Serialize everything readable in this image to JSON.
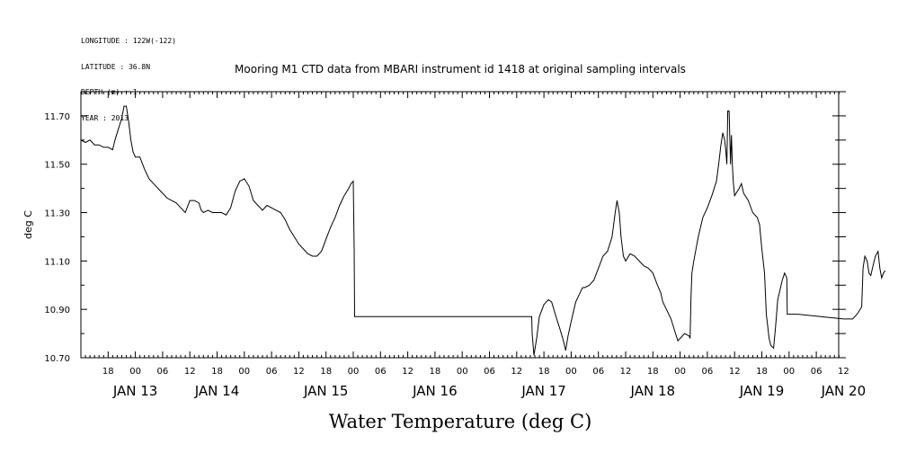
{
  "meta_lines": [
    "LONGITUDE : 122W(-122)",
    "LATITUDE : 36.8N",
    "DEPTH (m) : 1",
    "YEAR : 2013"
  ],
  "chart_data": {
    "type": "line",
    "title": "Mooring M1 CTD data from MBARI instrument id 1418 at original sampling intervals",
    "ylabel": "deg C",
    "xlabel": "Water Temperature (deg C)",
    "ylim": [
      10.7,
      11.8
    ],
    "xlim_hours": [
      12,
      180
    ],
    "yticks": [
      10.7,
      10.9,
      11.1,
      11.3,
      11.5,
      11.7
    ],
    "ytick_labels": [
      "10.70",
      "10.90",
      "11.10",
      "11.30",
      "11.50",
      "11.70"
    ],
    "hour_ticks": [
      18,
      0,
      6,
      12,
      18,
      0,
      6,
      12,
      18,
      0,
      6,
      12,
      18,
      0,
      6,
      12,
      18,
      0,
      6,
      12,
      18,
      0,
      6,
      12,
      18,
      0,
      6,
      12
    ],
    "day_labels": [
      "JAN 13",
      "JAN 14",
      "JAN 15",
      "JAN 16",
      "JAN 17",
      "JAN 18",
      "JAN 19",
      "JAN 20"
    ],
    "day_label_hours": [
      24,
      42,
      66,
      90,
      114,
      138,
      162,
      180
    ],
    "x_units": "hours since JAN 13 00:00",
    "series": [
      {
        "points": [
          [
            12,
            11.6
          ],
          [
            13,
            11.59
          ],
          [
            14,
            11.6
          ],
          [
            15,
            11.58
          ],
          [
            16,
            11.58
          ],
          [
            17,
            11.57
          ],
          [
            18,
            11.57
          ],
          [
            19,
            11.56
          ],
          [
            19.5,
            11.6
          ],
          [
            20,
            11.63
          ],
          [
            21,
            11.69
          ],
          [
            21.5,
            11.74
          ],
          [
            22,
            11.74
          ],
          [
            22.5,
            11.68
          ],
          [
            23,
            11.6
          ],
          [
            23.5,
            11.55
          ],
          [
            24,
            11.53
          ],
          [
            25,
            11.53
          ],
          [
            26,
            11.48
          ],
          [
            27,
            11.44
          ],
          [
            28,
            11.42
          ],
          [
            29,
            11.4
          ],
          [
            30,
            11.38
          ],
          [
            31,
            11.36
          ],
          [
            32,
            11.35
          ],
          [
            33,
            11.34
          ],
          [
            34,
            11.32
          ],
          [
            35,
            11.3
          ],
          [
            36,
            11.35
          ],
          [
            37,
            11.35
          ],
          [
            38,
            11.34
          ],
          [
            38.5,
            11.31
          ],
          [
            39,
            11.3
          ],
          [
            40,
            11.31
          ],
          [
            41,
            11.3
          ],
          [
            42,
            11.3
          ],
          [
            43,
            11.3
          ],
          [
            44,
            11.29
          ],
          [
            45,
            11.32
          ],
          [
            46,
            11.39
          ],
          [
            47,
            11.43
          ],
          [
            48,
            11.44
          ],
          [
            49,
            11.41
          ],
          [
            50,
            11.35
          ],
          [
            51,
            11.33
          ],
          [
            52,
            11.31
          ],
          [
            53,
            11.33
          ],
          [
            54,
            11.32
          ],
          [
            55,
            11.31
          ],
          [
            56,
            11.3
          ],
          [
            57,
            11.27
          ],
          [
            58,
            11.23
          ],
          [
            59,
            11.2
          ],
          [
            60,
            11.17
          ],
          [
            61,
            11.15
          ],
          [
            62,
            11.13
          ],
          [
            63,
            11.12
          ],
          [
            64,
            11.12
          ],
          [
            65,
            11.14
          ],
          [
            66,
            11.19
          ],
          [
            67,
            11.24
          ],
          [
            68,
            11.28
          ],
          [
            69,
            11.33
          ],
          [
            70,
            11.37
          ],
          [
            71,
            11.4
          ],
          [
            71.5,
            11.42
          ],
          [
            72,
            11.43
          ],
          [
            72.2,
            11.15
          ],
          [
            72.3,
            10.87
          ],
          [
            80,
            10.87
          ],
          [
            90,
            10.87
          ],
          [
            100,
            10.87
          ],
          [
            110,
            10.87
          ],
          [
            111.3,
            10.87
          ],
          [
            111.4,
            10.8
          ],
          [
            111.8,
            10.71
          ],
          [
            112.4,
            10.78
          ],
          [
            113,
            10.87
          ],
          [
            114,
            10.92
          ],
          [
            115,
            10.94
          ],
          [
            115.7,
            10.93
          ],
          [
            116.5,
            10.88
          ],
          [
            117.5,
            10.82
          ],
          [
            118.3,
            10.77
          ],
          [
            118.8,
            10.73
          ],
          [
            119.3,
            10.79
          ],
          [
            120,
            10.85
          ],
          [
            121,
            10.93
          ],
          [
            122,
            10.97
          ],
          [
            122.5,
            10.99
          ],
          [
            123,
            10.99
          ],
          [
            124,
            11
          ],
          [
            125,
            11.02
          ],
          [
            126,
            11.07
          ],
          [
            127,
            11.12
          ],
          [
            128,
            11.14
          ],
          [
            129,
            11.2
          ],
          [
            129.7,
            11.3
          ],
          [
            130.1,
            11.35
          ],
          [
            130.6,
            11.3
          ],
          [
            131,
            11.2
          ],
          [
            131.5,
            11.12
          ],
          [
            132,
            11.1
          ],
          [
            133,
            11.13
          ],
          [
            134,
            11.12
          ],
          [
            135,
            11.1
          ],
          [
            136,
            11.08
          ],
          [
            137,
            11.07
          ],
          [
            138,
            11.05
          ],
          [
            139,
            11
          ],
          [
            139.7,
            10.97
          ],
          [
            140.2,
            10.93
          ],
          [
            141,
            10.9
          ],
          [
            142,
            10.86
          ],
          [
            143,
            10.8
          ],
          [
            143.5,
            10.77
          ],
          [
            144,
            10.78
          ],
          [
            145,
            10.8
          ],
          [
            146,
            10.79
          ],
          [
            146.2,
            10.78
          ],
          [
            146.4,
            10.95
          ],
          [
            146.6,
            11.05
          ],
          [
            147,
            11.1
          ],
          [
            148,
            11.2
          ],
          [
            149,
            11.28
          ],
          [
            150,
            11.32
          ],
          [
            151,
            11.37
          ],
          [
            152,
            11.43
          ],
          [
            152.5,
            11.5
          ],
          [
            153,
            11.58
          ],
          [
            153.4,
            11.63
          ],
          [
            153.8,
            11.6
          ],
          [
            154.1,
            11.55
          ],
          [
            154.3,
            11.5
          ],
          [
            154.5,
            11.72
          ],
          [
            154.8,
            11.72
          ],
          [
            155.1,
            11.5
          ],
          [
            155.3,
            11.62
          ],
          [
            155.5,
            11.5
          ],
          [
            155.7,
            11.43
          ],
          [
            156,
            11.37
          ],
          [
            157,
            11.4
          ],
          [
            157.5,
            11.42
          ],
          [
            158,
            11.38
          ],
          [
            159,
            11.35
          ],
          [
            160,
            11.3
          ],
          [
            161,
            11.28
          ],
          [
            161.5,
            11.25
          ],
          [
            162,
            11.15
          ],
          [
            162.6,
            11.05
          ],
          [
            163,
            10.88
          ],
          [
            163.6,
            10.78
          ],
          [
            164,
            10.75
          ],
          [
            164.6,
            10.74
          ],
          [
            165,
            10.82
          ],
          [
            165.5,
            10.94
          ],
          [
            166,
            10.98
          ],
          [
            166.5,
            11.02
          ],
          [
            167,
            11.05
          ],
          [
            167.5,
            11.03
          ],
          [
            167.6,
            10.88
          ],
          [
            170,
            10.88
          ],
          [
            175,
            10.87
          ],
          [
            180,
            10.86
          ],
          [
            182,
            10.86
          ],
          [
            183,
            10.88
          ],
          [
            184,
            10.91
          ],
          [
            184.3,
            11.07
          ],
          [
            184.7,
            11.12
          ],
          [
            185.2,
            11.1
          ],
          [
            185.6,
            11.05
          ],
          [
            186,
            11.04
          ],
          [
            186.5,
            11.08
          ],
          [
            187,
            11.12
          ],
          [
            187.6,
            11.14
          ],
          [
            188,
            11.07
          ],
          [
            188.4,
            11.03
          ],
          [
            188.8,
            11.05
          ],
          [
            189.2,
            11.06
          ]
        ]
      }
    ]
  }
}
